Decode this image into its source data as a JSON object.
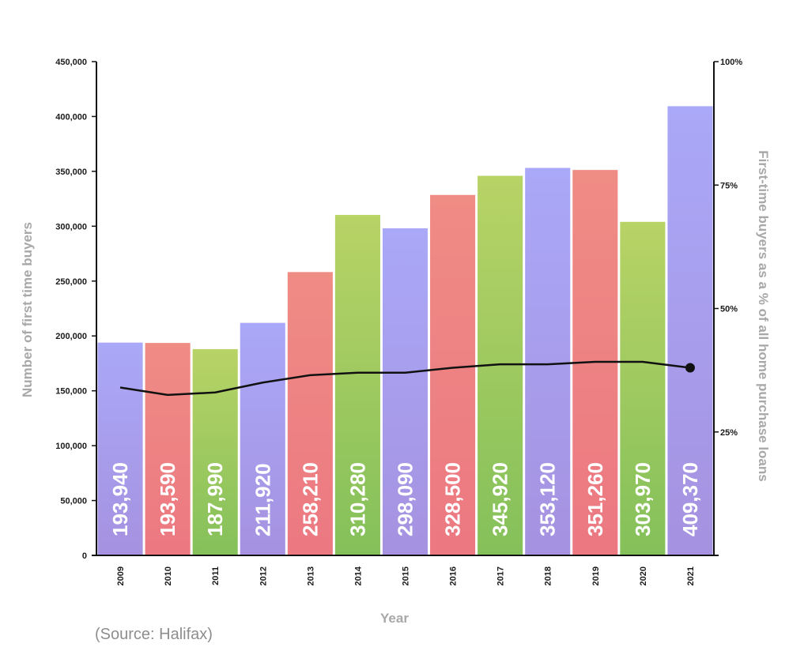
{
  "chart_data": {
    "type": "bar",
    "categories": [
      "2009",
      "2010",
      "2011",
      "2012",
      "2013",
      "2014",
      "2015",
      "2016",
      "2017",
      "2018",
      "2019",
      "2020",
      "2021"
    ],
    "series": [
      {
        "values": [
          193940,
          193590,
          187990,
          211920,
          258210,
          310280,
          298090,
          328500,
          345920,
          353120,
          351260,
          303970,
          409370
        ]
      }
    ],
    "line_series": {
      "axis": "right",
      "values": [
        34,
        32.5,
        33,
        35,
        36.5,
        37,
        37,
        38,
        38.7,
        38.7,
        39.2,
        39.2,
        38
      ]
    },
    "data_labels": [
      "193,940",
      "193,590",
      "187,990",
      "211,920",
      "258,210",
      "310,280",
      "298,090",
      "328,500",
      "345,920",
      "353,120",
      "351,260",
      "303,970",
      "409,370"
    ],
    "bar_colors": [
      "purple",
      "red",
      "green",
      "purple",
      "red",
      "green",
      "purple",
      "red",
      "green",
      "purple",
      "red",
      "green",
      "purple"
    ],
    "colors": {
      "purple_top": "#aaa8f8",
      "purple_bottom": "#a592e0",
      "red_top": "#ef8c84",
      "red_bottom": "#ec7882",
      "green_top": "#b8d366",
      "green_bottom": "#84c05a",
      "line": "#111111",
      "axis": "#111111"
    },
    "xlabel": "Year",
    "ylabel": "Number of first time buyers",
    "y2label": "First-time buyers as a % of all home purchase loans",
    "ylim": [
      0,
      450000
    ],
    "y2lim": [
      0,
      100
    ],
    "yticks": [
      "0",
      "50,000",
      "100,000",
      "150,000",
      "200,000",
      "250,000",
      "300,000",
      "350,000",
      "400,000",
      "450,000"
    ],
    "y2ticks": [
      "25%",
      "50%",
      "75%",
      "100%"
    ],
    "grid": false
  },
  "source": "(Source: Halifax)"
}
